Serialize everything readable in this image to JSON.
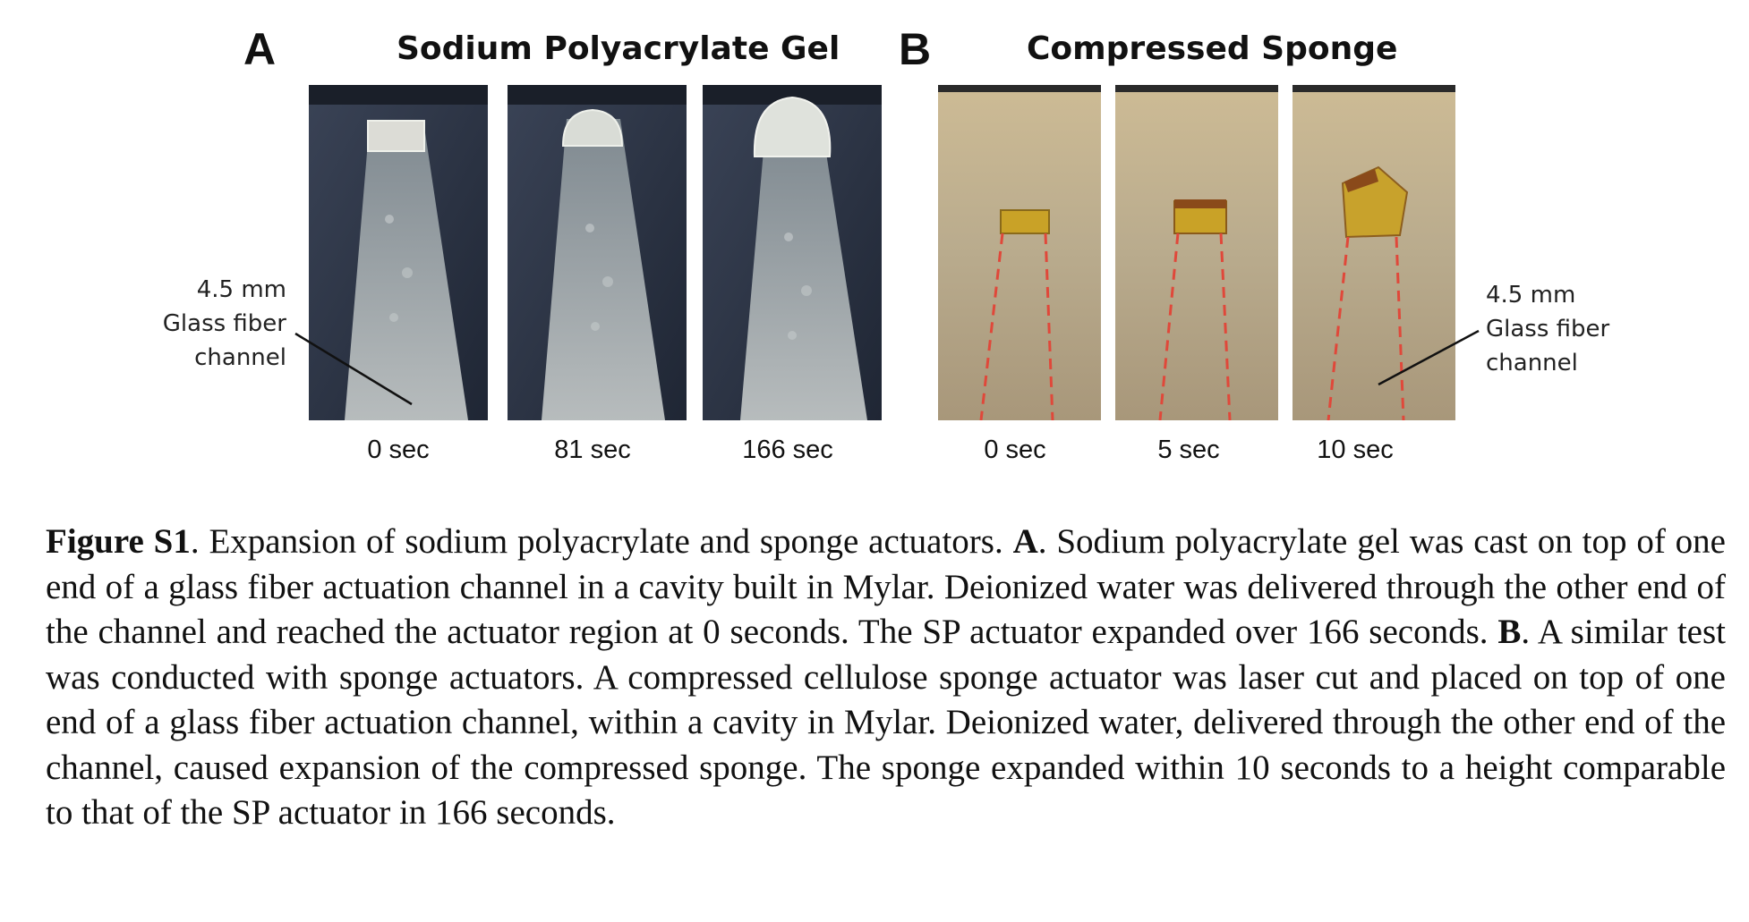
{
  "panelA": {
    "letter": "A",
    "title": "Sodium Polyacrylate Gel",
    "times": [
      "0 sec",
      "81 sec",
      "166 sec"
    ]
  },
  "panelB": {
    "letter": "B",
    "title": "Compressed Sponge",
    "times": [
      "0 sec",
      "5 sec",
      "10 sec"
    ]
  },
  "annotation": {
    "line1": "4.5 mm",
    "line2": "Glass fiber",
    "line3": "channel"
  },
  "caption": {
    "label": "Figure S1",
    "sentence1": ". Expansion of sodium polyacrylate and sponge actuators. ",
    "refA": "A",
    "partA": ". Sodium polyacrylate gel was cast on top of one end of a glass fiber actuation channel in a cavity built in Mylar. Deionized water was delivered through the other end of the channel and reached the actuator region at 0 seconds. The SP actuator expanded over 166 seconds. ",
    "refB": "B",
    "partB": ". A similar test was conducted with sponge actuators. A compressed cellulose sponge actuator was laser cut and placed on top of one end of a glass fiber actuation channel, within a cavity in Mylar. Deionized water, delivered through the other end of the channel, caused expansion of the compressed sponge. The sponge expanded within 10 seconds to a height comparable to that of the SP actuator in 166 seconds."
  },
  "colors": {
    "gel_background": "#2c3545",
    "gel_channel": "#9aa3a8",
    "sponge_background": "#c7b490",
    "sponge_actuator": "#c9a227",
    "dashed_line": "#e0483a"
  }
}
